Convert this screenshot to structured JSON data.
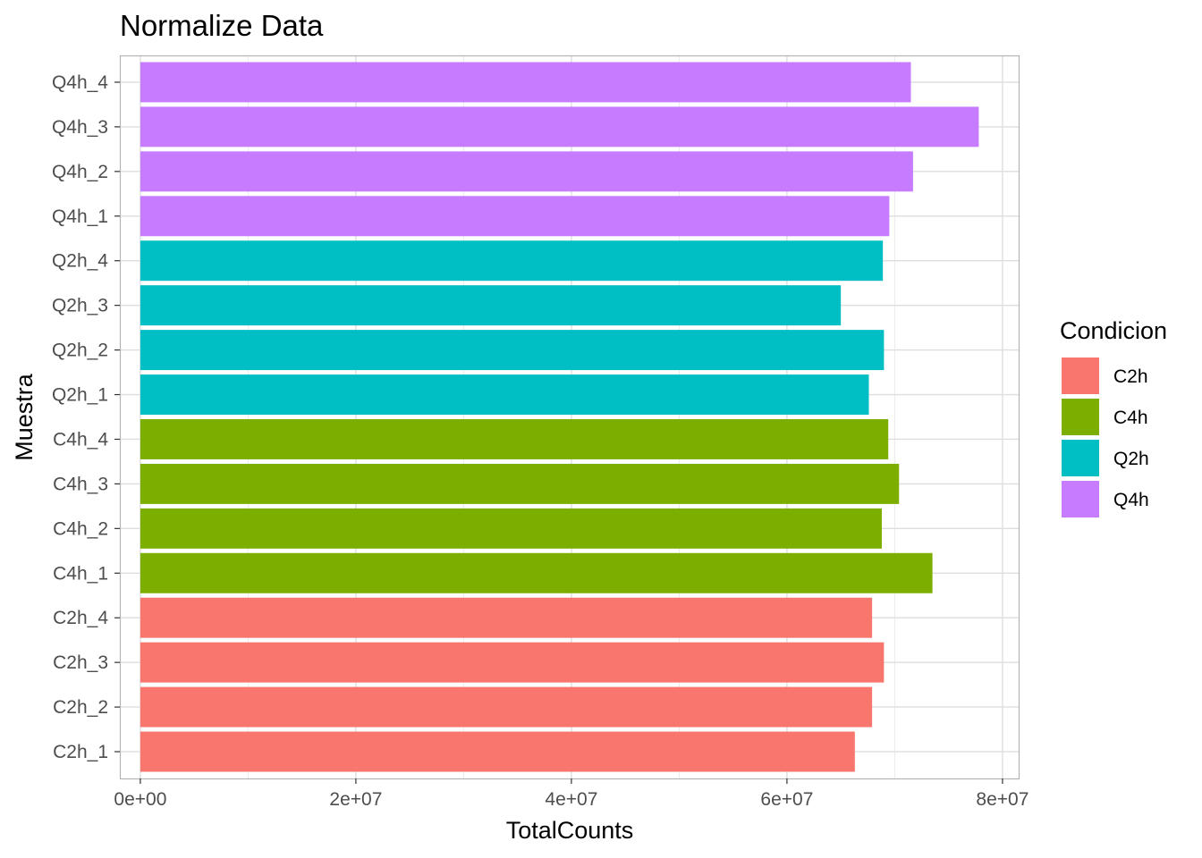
{
  "chart_data": {
    "type": "bar",
    "orientation": "horizontal",
    "title": "Normalize Data",
    "xlabel": "TotalCounts",
    "ylabel": "Muestra",
    "xlim": [
      -1900000,
      81500000
    ],
    "x_ticks": [
      0,
      20000000,
      40000000,
      60000000,
      80000000
    ],
    "x_tick_labels": [
      "0e+00",
      "2e+07",
      "4e+07",
      "6e+07",
      "8e+07"
    ],
    "grid": true,
    "legend": {
      "title": "Condicion",
      "position": "right"
    },
    "groups": [
      {
        "name": "C2h",
        "color": "#F8766D"
      },
      {
        "name": "C4h",
        "color": "#7CAE00"
      },
      {
        "name": "Q2h",
        "color": "#00BFC4"
      },
      {
        "name": "Q4h",
        "color": "#C77CFF"
      }
    ],
    "categories": [
      "C2h_1",
      "C2h_2",
      "C2h_3",
      "C2h_4",
      "C4h_1",
      "C4h_2",
      "C4h_3",
      "C4h_4",
      "Q2h_1",
      "Q2h_2",
      "Q2h_3",
      "Q2h_4",
      "Q4h_1",
      "Q4h_2",
      "Q4h_3",
      "Q4h_4"
    ],
    "values": [
      66300000,
      67900000,
      69000000,
      67900000,
      73500000,
      68800000,
      70400000,
      69400000,
      67600000,
      69000000,
      65000000,
      68900000,
      69500000,
      71700000,
      77800000,
      71500000
    ],
    "condition": [
      "C2h",
      "C2h",
      "C2h",
      "C2h",
      "C4h",
      "C4h",
      "C4h",
      "C4h",
      "Q2h",
      "Q2h",
      "Q2h",
      "Q2h",
      "Q4h",
      "Q4h",
      "Q4h",
      "Q4h"
    ]
  }
}
